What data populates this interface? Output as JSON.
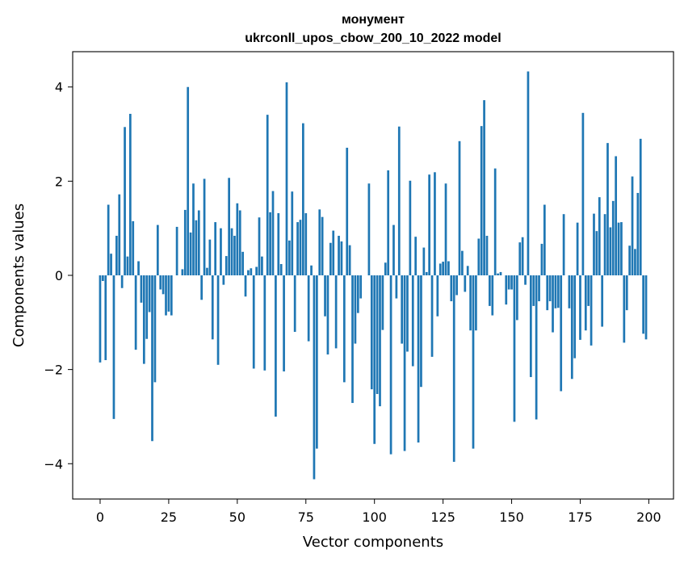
{
  "chart_data": {
    "type": "bar",
    "title_line1": "монумент",
    "title_line2": "ukrconll_upos_cbow_200_10_2022 model",
    "xlabel": "Vector components",
    "ylabel": "Components values",
    "xlim": [
      -10,
      209
    ],
    "ylim": [
      -4.75,
      4.75
    ],
    "xticks": [
      0,
      25,
      50,
      75,
      100,
      125,
      150,
      175,
      200
    ],
    "yticks": [
      -4,
      -2,
      0,
      2,
      4
    ],
    "ytick_labels": [
      "−4",
      "−2",
      "0",
      "2",
      "4"
    ],
    "bar_color": "#1f77b4",
    "values": [
      -1.85,
      -0.12,
      -1.8,
      1.5,
      0.46,
      -3.05,
      0.84,
      1.72,
      -0.27,
      3.15,
      0.4,
      3.43,
      1.15,
      -1.58,
      0.3,
      -0.58,
      -1.88,
      -1.35,
      -0.78,
      -3.52,
      -2.27,
      1.07,
      -0.3,
      -0.4,
      -0.85,
      -0.77,
      -0.85,
      0.0,
      1.03,
      0.0,
      0.13,
      1.39,
      4.0,
      0.91,
      1.95,
      1.17,
      1.38,
      -0.52,
      2.05,
      0.16,
      0.76,
      -1.36,
      1.13,
      -1.9,
      1.0,
      -0.2,
      0.41,
      2.07,
      1.0,
      0.84,
      1.53,
      1.38,
      0.5,
      -0.45,
      0.11,
      0.15,
      -1.98,
      0.18,
      1.23,
      0.4,
      -2.02,
      3.41,
      1.34,
      1.79,
      -3.0,
      1.32,
      0.24,
      -2.04,
      4.1,
      0.74,
      1.78,
      -1.2,
      1.13,
      1.18,
      3.23,
      1.32,
      -1.4,
      0.21,
      -4.33,
      -3.68,
      1.4,
      1.24,
      -0.87,
      -1.68,
      0.69,
      0.95,
      -1.55,
      0.84,
      0.72,
      -2.27,
      2.71,
      0.64,
      -2.71,
      -1.45,
      -0.8,
      -0.49,
      0.0,
      0.0,
      1.95,
      -2.42,
      -3.58,
      -2.52,
      -2.78,
      -1.16,
      0.27,
      2.23,
      -3.8,
      1.07,
      -0.49,
      3.16,
      -1.45,
      -3.73,
      -1.62,
      2.01,
      -1.93,
      0.82,
      -3.55,
      -2.37,
      0.59,
      0.07,
      2.14,
      -1.73,
      2.19,
      -0.87,
      0.25,
      0.29,
      1.95,
      0.3,
      -0.55,
      -3.96,
      -0.42,
      2.85,
      0.52,
      -0.35,
      0.2,
      -1.17,
      -3.68,
      -1.17,
      0.78,
      3.17,
      3.72,
      0.84,
      -0.65,
      -0.85,
      2.27,
      0.04,
      0.07,
      0.0,
      -0.62,
      -0.3,
      -0.3,
      -3.11,
      -0.95,
      0.7,
      0.81,
      -0.2,
      4.33,
      -2.16,
      -0.65,
      -3.06,
      -0.55,
      0.67,
      1.5,
      -0.74,
      -0.55,
      -1.21,
      -0.7,
      -0.69,
      -2.46,
      1.3,
      0.0,
      -0.7,
      -2.2,
      -1.76,
      1.12,
      -1.37,
      3.45,
      -1.17,
      -0.65,
      -1.49,
      1.31,
      0.94,
      1.66,
      -1.09,
      1.3,
      2.81,
      1.02,
      1.58,
      2.53,
      1.12,
      1.13,
      -1.43,
      -0.74,
      0.63,
      2.1,
      0.56,
      1.75,
      2.9,
      -1.24,
      -1.36
    ]
  }
}
